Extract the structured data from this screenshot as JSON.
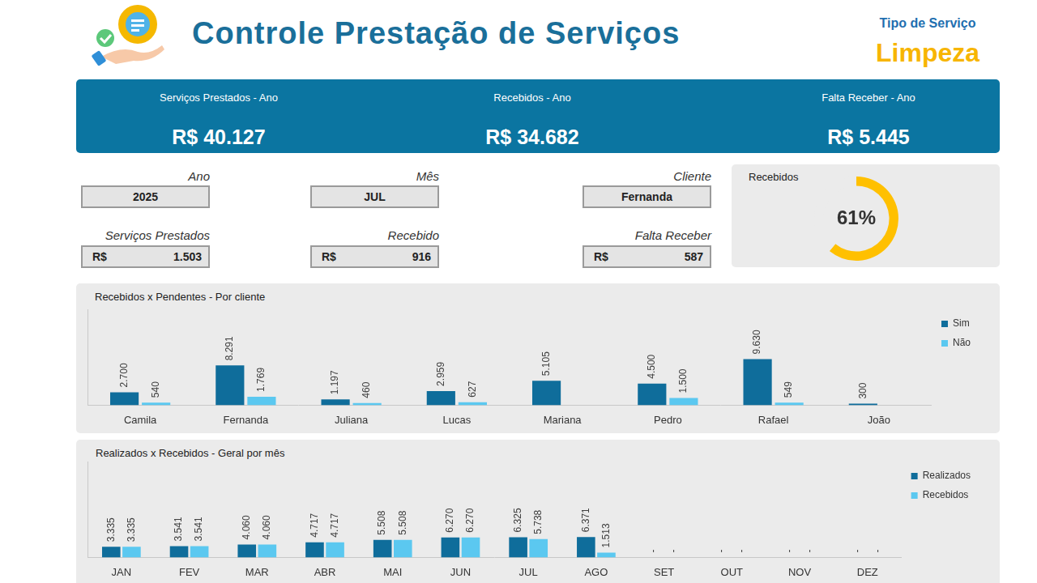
{
  "header": {
    "title": "Controle Prestação de Serviços",
    "service_type_label": "Tipo de Serviço",
    "service_type": "Limpeza"
  },
  "kpis": [
    {
      "label": "Serviços Prestados - Ano",
      "value": "R$ 40.127"
    },
    {
      "label": "Recebidos - Ano",
      "value": "R$ 34.682"
    },
    {
      "label": "Falta Receber - Ano",
      "value": "R$ 5.445"
    }
  ],
  "filters": [
    {
      "label": "Ano",
      "value": "2025"
    },
    {
      "label": "Mês",
      "value": "JUL"
    },
    {
      "label": "Cliente",
      "value": "Fernanda"
    }
  ],
  "month_totals": [
    {
      "label": "Serviços Prestados",
      "currency": "R$",
      "value": "1.503"
    },
    {
      "label": "Recebido",
      "currency": "R$",
      "value": "916"
    },
    {
      "label": "Falta Receber",
      "currency": "R$",
      "value": "587"
    }
  ],
  "chart_data": [
    {
      "type": "doughnut",
      "title": "Recebidos",
      "values": [
        61,
        39
      ],
      "value_labels": [
        "61%",
        null
      ],
      "colors": [
        "#ffc000",
        "#ebebeb"
      ],
      "data_labels": true
    },
    {
      "type": "bar",
      "title": "Recebidos x Pendentes - Por cliente",
      "categories": [
        "Camila",
        "Fernanda",
        "Juliana",
        "Lucas",
        "Mariana",
        "Pedro",
        "Rafael",
        "João"
      ],
      "series": [
        {
          "name": "Sim",
          "color": "#0f6d9b",
          "values": [
            2700,
            8291,
            1197,
            2959,
            5105,
            4500,
            9630,
            300
          ],
          "value_labels": [
            "2.700",
            "8.291",
            "1.197",
            "2.959",
            "5.105",
            "4.500",
            "9.630",
            "300"
          ]
        },
        {
          "name": "Não",
          "color": "#5bc8f0",
          "values": [
            540,
            1769,
            460,
            627,
            null,
            1500,
            549,
            null
          ],
          "value_labels": [
            "540",
            "1.769",
            "460",
            "627",
            null,
            "1.500",
            "549",
            null
          ]
        }
      ],
      "ylim": [
        0,
        20000
      ],
      "grid": false,
      "legend": "right",
      "data_labels": true,
      "tick_labels": "x"
    },
    {
      "type": "bar",
      "title": "Realizados x Recebidos - Geral por mês",
      "categories": [
        "JAN",
        "FEV",
        "MAR",
        "ABR",
        "MAI",
        "JUN",
        "JUL",
        "AGO",
        "SET",
        "OUT",
        "NOV",
        "DEZ"
      ],
      "series": [
        {
          "name": "Realizados",
          "color": "#0f6d9b",
          "values": [
            3335,
            3541,
            4060,
            4717,
            5508,
            6270,
            6325,
            6371,
            0,
            0,
            0,
            0
          ],
          "value_labels": [
            "3.335",
            "3.541",
            "4.060",
            "4.717",
            "5.508",
            "6.270",
            "6.325",
            "6.371",
            "-",
            "-",
            "-",
            "-"
          ]
        },
        {
          "name": "Recebidos",
          "color": "#5bc8f0",
          "values": [
            3335,
            3541,
            4060,
            4717,
            5508,
            6270,
            5738,
            1513,
            0,
            0,
            0,
            0
          ],
          "value_labels": [
            "3.335",
            "3.541",
            "4.060",
            "4.717",
            "5.508",
            "6.270",
            "5.738",
            "1.513",
            "-",
            "-",
            "-",
            "-"
          ]
        }
      ],
      "ylim": [
        0,
        30000
      ],
      "grid": false,
      "legend": "right",
      "data_labels": true,
      "tick_labels": "x"
    }
  ]
}
